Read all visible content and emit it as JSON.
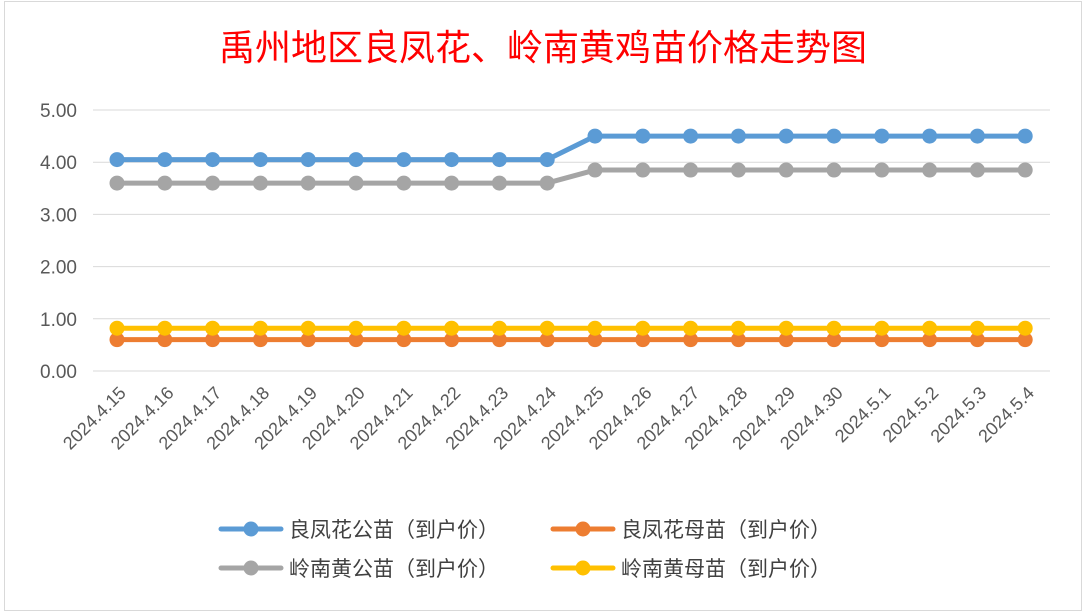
{
  "chart_data": {
    "type": "line",
    "title": "禹州地区良凤花、岭南黄鸡苗价格走势图",
    "xlabel": "",
    "ylabel": "",
    "ylim": [
      0,
      5
    ],
    "yticks": [
      "0.00",
      "1.00",
      "2.00",
      "3.00",
      "4.00",
      "5.00"
    ],
    "grid": true,
    "legend_position": "bottom",
    "categories": [
      "2024.4.15",
      "2024.4.16",
      "2024.4.17",
      "2024.4.18",
      "2024.4.19",
      "2024.4.20",
      "2024.4.21",
      "2024.4.22",
      "2024.4.23",
      "2024.4.24",
      "2024.4.25",
      "2024.4.26",
      "2024.4.27",
      "2024.4.28",
      "2024.4.29",
      "2024.4.30",
      "2024.5.1",
      "2024.5.2",
      "2024.5.3",
      "2024.5.4"
    ],
    "series": [
      {
        "name": "良凤花公苗（到户价）",
        "color": "#5b9bd5",
        "values": [
          4.05,
          4.05,
          4.05,
          4.05,
          4.05,
          4.05,
          4.05,
          4.05,
          4.05,
          4.05,
          4.5,
          4.5,
          4.5,
          4.5,
          4.5,
          4.5,
          4.5,
          4.5,
          4.5,
          4.5
        ]
      },
      {
        "name": "良凤花母苗（到户价）",
        "color": "#ed7d31",
        "values": [
          0.6,
          0.6,
          0.6,
          0.6,
          0.6,
          0.6,
          0.6,
          0.6,
          0.6,
          0.6,
          0.6,
          0.6,
          0.6,
          0.6,
          0.6,
          0.6,
          0.6,
          0.6,
          0.6,
          0.6
        ]
      },
      {
        "name": "岭南黄公苗（到户价）",
        "color": "#a5a5a5",
        "values": [
          3.6,
          3.6,
          3.6,
          3.6,
          3.6,
          3.6,
          3.6,
          3.6,
          3.6,
          3.6,
          3.85,
          3.85,
          3.85,
          3.85,
          3.85,
          3.85,
          3.85,
          3.85,
          3.85,
          3.85
        ]
      },
      {
        "name": "岭南黄母苗（到户价）",
        "color": "#ffc000",
        "values": [
          0.82,
          0.82,
          0.82,
          0.82,
          0.82,
          0.82,
          0.82,
          0.82,
          0.82,
          0.82,
          0.82,
          0.82,
          0.82,
          0.82,
          0.82,
          0.82,
          0.82,
          0.82,
          0.82,
          0.82
        ]
      }
    ]
  }
}
